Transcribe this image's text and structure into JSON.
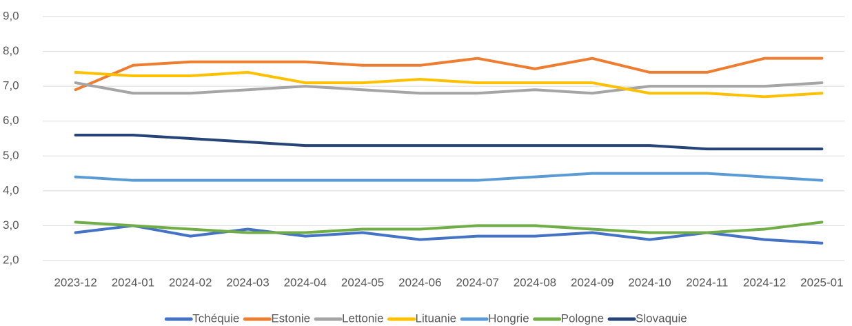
{
  "chart_data": {
    "type": "line",
    "categories": [
      "2023-12",
      "2024-01",
      "2024-02",
      "2024-03",
      "2024-04",
      "2024-05",
      "2024-06",
      "2024-07",
      "2024-08",
      "2024-09",
      "2024-10",
      "2024-11",
      "2024-12",
      "2025-01"
    ],
    "series": [
      {
        "name": "Tchéquie",
        "color": "#4472c4",
        "values": [
          2.8,
          3.0,
          2.7,
          2.9,
          2.7,
          2.8,
          2.6,
          2.7,
          2.7,
          2.8,
          2.6,
          2.8,
          2.6,
          2.5
        ]
      },
      {
        "name": "Estonie",
        "color": "#ed7d31",
        "values": [
          6.9,
          7.6,
          7.7,
          7.7,
          7.7,
          7.6,
          7.6,
          7.8,
          7.5,
          7.8,
          7.4,
          7.4,
          7.8,
          7.8
        ]
      },
      {
        "name": "Lettonie",
        "color": "#a5a5a5",
        "values": [
          7.1,
          6.8,
          6.8,
          6.9,
          7.0,
          6.9,
          6.8,
          6.8,
          6.9,
          6.8,
          7.0,
          7.0,
          7.0,
          7.1
        ]
      },
      {
        "name": "Lituanie",
        "color": "#ffc000",
        "values": [
          7.4,
          7.3,
          7.3,
          7.4,
          7.1,
          7.1,
          7.2,
          7.1,
          7.1,
          7.1,
          6.8,
          6.8,
          6.7,
          6.8
        ]
      },
      {
        "name": "Hongrie",
        "color": "#5b9bd5",
        "values": [
          4.4,
          4.3,
          4.3,
          4.3,
          4.3,
          4.3,
          4.3,
          4.3,
          4.4,
          4.5,
          4.5,
          4.5,
          4.4,
          4.3
        ]
      },
      {
        "name": "Pologne",
        "color": "#70ad47",
        "values": [
          3.1,
          3.0,
          2.9,
          2.8,
          2.8,
          2.9,
          2.9,
          3.0,
          3.0,
          2.9,
          2.8,
          2.8,
          2.9,
          3.1
        ]
      },
      {
        "name": "Slovaquie",
        "color": "#264478",
        "values": [
          5.6,
          5.6,
          5.5,
          5.4,
          5.3,
          5.3,
          5.3,
          5.3,
          5.3,
          5.3,
          5.3,
          5.2,
          5.2,
          5.2
        ]
      }
    ],
    "ylim": [
      2,
      9
    ],
    "yticks": [
      {
        "value": 2,
        "label": "2,0"
      },
      {
        "value": 3,
        "label": "3,0"
      },
      {
        "value": 4,
        "label": "4,0"
      },
      {
        "value": 5,
        "label": "5,0"
      },
      {
        "value": 6,
        "label": "6,0"
      },
      {
        "value": 7,
        "label": "7,0"
      },
      {
        "value": 8,
        "label": "8,0"
      },
      {
        "value": 9,
        "label": "9,0"
      }
    ],
    "grid": true,
    "legend": "bottom"
  }
}
